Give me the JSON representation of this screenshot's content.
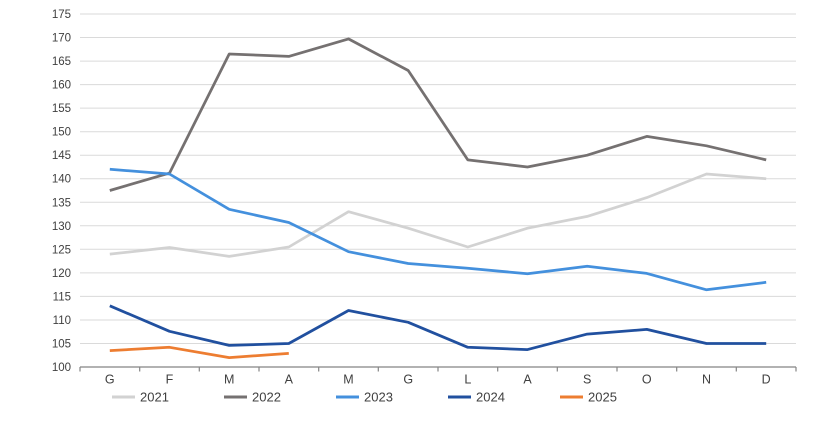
{
  "chart_data": {
    "type": "line",
    "categories": [
      "G",
      "F",
      "M",
      "A",
      "M",
      "G",
      "L",
      "A",
      "S",
      "O",
      "N",
      "D"
    ],
    "ylim": [
      100,
      175
    ],
    "ytick_step": 5,
    "grid": true,
    "legend_position": "bottom",
    "series": [
      {
        "name": "2021",
        "color": "#d2d2d2",
        "values": [
          124,
          125.4,
          123.5,
          125.5,
          133,
          129.5,
          125.5,
          129.5,
          132,
          136,
          141,
          140
        ]
      },
      {
        "name": "2022",
        "color": "#757171",
        "values": [
          137.5,
          141.2,
          166.5,
          166,
          169.7,
          163,
          144,
          142.5,
          145,
          149,
          147,
          144
        ]
      },
      {
        "name": "2023",
        "color": "#4490dd",
        "values": [
          142,
          141,
          133.5,
          130.7,
          124.5,
          122,
          121,
          119.8,
          121.4,
          119.9,
          116.4,
          118
        ]
      },
      {
        "name": "2024",
        "color": "#21509f",
        "values": [
          113,
          107.6,
          104.6,
          105,
          112,
          109.5,
          104.2,
          103.7,
          107,
          108,
          105,
          105
        ]
      },
      {
        "name": "2025",
        "color": "#ed7d31",
        "values": [
          103.5,
          104.2,
          102,
          102.9
        ]
      }
    ]
  },
  "styles": {
    "background": "#ffffff",
    "grid_color": "#dadada",
    "axis_color": "#858585",
    "label_color": "#404040"
  }
}
